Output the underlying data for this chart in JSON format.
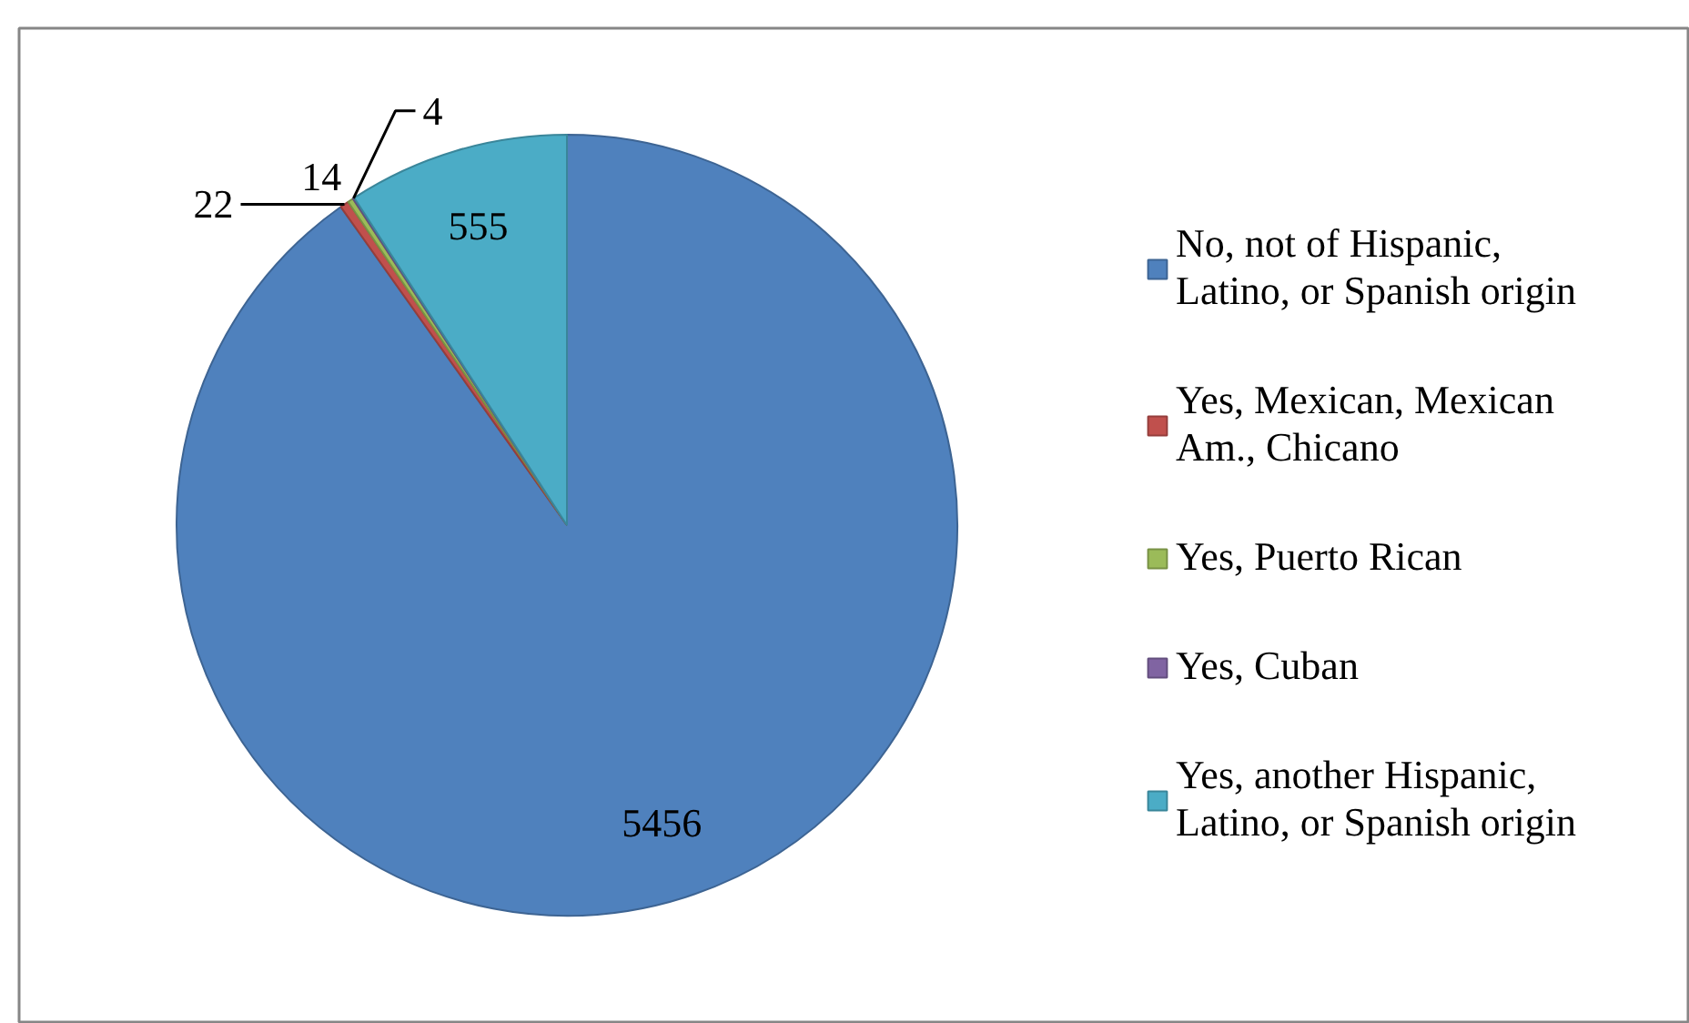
{
  "chart_data": {
    "type": "pie",
    "categories": [
      "No, not of Hispanic, Latino, or Spanish origin",
      "Yes, Mexican, Mexican Am., Chicano",
      "Yes, Puerto Rican",
      "Yes, Cuban",
      "Yes, another Hispanic, Latino, or Spanish origin"
    ],
    "values": [
      5456,
      22,
      14,
      4,
      555
    ],
    "colors": [
      "#4f81bd",
      "#c0504d",
      "#9bbb59",
      "#8064a2",
      "#4bacc6"
    ],
    "data_labels": true,
    "legend": "right"
  }
}
